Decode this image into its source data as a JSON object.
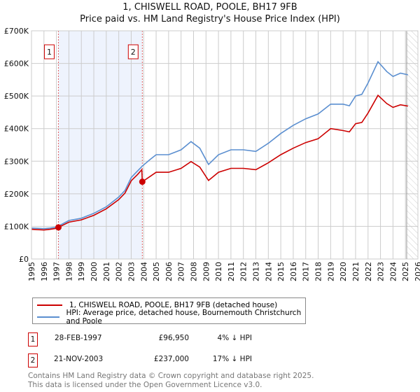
{
  "title_line1": "1, CHISWELL ROAD, POOLE, BH17 9FB",
  "title_line2": "Price paid vs. HM Land Registry's House Price Index (HPI)",
  "colors": {
    "property": "#cc0000",
    "hpi": "#5b8fd0",
    "shade": "#eef3fd",
    "grid": "#cccccc"
  },
  "chart_data": {
    "type": "line",
    "title": "1, CHISWELL ROAD, POOLE, BH17 9FB — Price paid vs. HM Land Registry's House Price Index (HPI)",
    "xlim": [
      1995,
      2026
    ],
    "ylim": [
      0,
      700000
    ],
    "x_ticks": [
      "1995",
      "1996",
      "1997",
      "1998",
      "1999",
      "2000",
      "2001",
      "2002",
      "2003",
      "2004",
      "2005",
      "2006",
      "2007",
      "2008",
      "2009",
      "2010",
      "2011",
      "2012",
      "2013",
      "2014",
      "2015",
      "2016",
      "2017",
      "2018",
      "2019",
      "2020",
      "2021",
      "2022",
      "2023",
      "2024",
      "2025",
      "2026"
    ],
    "y_ticks": [
      {
        "v": 0,
        "label": "£0"
      },
      {
        "v": 100000,
        "label": "£100K"
      },
      {
        "v": 200000,
        "label": "£200K"
      },
      {
        "v": 300000,
        "label": "£300K"
      },
      {
        "v": 400000,
        "label": "£400K"
      },
      {
        "v": 500000,
        "label": "£500K"
      },
      {
        "v": 600000,
        "label": "£600K"
      },
      {
        "v": 700000,
        "label": "£700K"
      }
    ],
    "grid": true,
    "series": [
      {
        "name": "1, CHISWELL ROAD, POOLE, BH17 9FB (detached house)",
        "color": "#cc0000",
        "x": [
          1995,
          1995.5,
          1996,
          1996.5,
          1997,
          1997.16,
          1998,
          1999,
          2000,
          2001,
          2002,
          2002.5,
          2003,
          2003.5,
          2003.85,
          2003.89,
          2004.5,
          2005,
          2006,
          2007,
          2007.8,
          2008.5,
          2009.2,
          2010,
          2011,
          2012,
          2013,
          2014,
          2015,
          2016,
          2017,
          2018,
          2019,
          2020,
          2020.5,
          2021,
          2021.5,
          2022,
          2022.8,
          2023.5,
          2024,
          2024.6,
          2025.2
        ],
        "y": [
          91000,
          90000,
          89000,
          91000,
          94000,
          96950,
          113000,
          120000,
          134000,
          154000,
          182000,
          202000,
          240000,
          259000,
          274000,
          237000,
          253000,
          266000,
          266000,
          278000,
          299000,
          282000,
          241000,
          266000,
          278000,
          278000,
          274000,
          295000,
          320000,
          340000,
          357000,
          369000,
          400000,
          394000,
          390000,
          415000,
          419000,
          448000,
          502000,
          477000,
          465000,
          473000,
          469000
        ]
      },
      {
        "name": "HPI: Average price, detached house, Bournemouth Christchurch and Poole",
        "color": "#5b8fd0",
        "x": [
          1995,
          1995.5,
          1996,
          1996.5,
          1997,
          1997.16,
          1998,
          1999,
          2000,
          2001,
          2002,
          2002.5,
          2003,
          2003.5,
          2003.89,
          2004.5,
          2005,
          2006,
          2007,
          2007.8,
          2008.5,
          2009.2,
          2010,
          2011,
          2012,
          2013,
          2014,
          2015,
          2016,
          2017,
          2018,
          2019,
          2020,
          2020.5,
          2021,
          2021.5,
          2022,
          2022.8,
          2023.5,
          2024,
          2024.6,
          2025.2
        ],
        "y": [
          95000,
          94000,
          93000,
          95000,
          98000,
          101000,
          118000,
          125000,
          140000,
          160000,
          190000,
          210000,
          250000,
          270000,
          285000,
          305000,
          320000,
          320000,
          335000,
          360000,
          340000,
          290000,
          320000,
          335000,
          335000,
          330000,
          355000,
          385000,
          410000,
          430000,
          445000,
          475000,
          475000,
          470000,
          500000,
          505000,
          540000,
          605000,
          575000,
          560000,
          570000,
          565000
        ]
      }
    ],
    "sales": [
      {
        "label": "1",
        "x": 1997.16,
        "y": 96950
      },
      {
        "label": "2",
        "x": 2003.89,
        "y": 237000
      }
    ],
    "shaded_range": [
      1997.16,
      2003.89
    ],
    "hatched_from": 2025.1
  },
  "legend": {
    "property": "1, CHISWELL ROAD, POOLE, BH17 9FB (detached house)",
    "hpi": "HPI: Average price, detached house, Bournemouth Christchurch and Poole"
  },
  "transactions": [
    {
      "num": "1",
      "date": "28-FEB-1997",
      "price": "£96,950",
      "diff": "4% ↓ HPI"
    },
    {
      "num": "2",
      "date": "21-NOV-2003",
      "price": "£237,000",
      "diff": "17% ↓ HPI"
    }
  ],
  "footer_line1": "Contains HM Land Registry data © Crown copyright and database right 2025.",
  "footer_line2": "This data is licensed under the Open Government Licence v3.0."
}
